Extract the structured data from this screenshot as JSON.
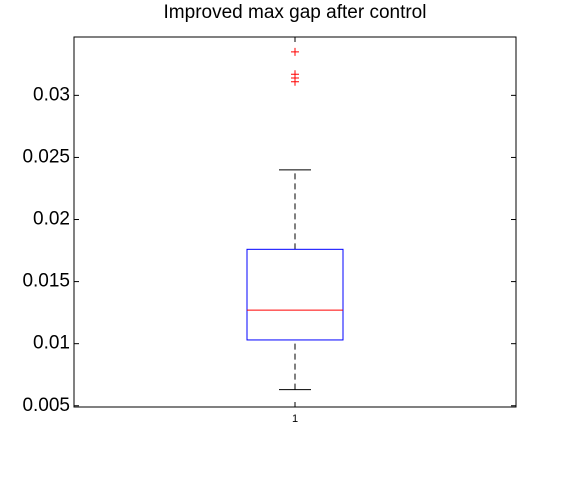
{
  "chart_data": {
    "type": "box",
    "title": "Improved max gap after control",
    "categories": [
      "1"
    ],
    "boxes": [
      {
        "whisker_low": 0.0063,
        "q1": 0.0103,
        "median": 0.0127,
        "q3": 0.0176,
        "whisker_high": 0.024,
        "outliers": [
          0.0335,
          0.0317,
          0.0314,
          0.0311
        ]
      }
    ],
    "box_color": "#0000ff",
    "median_color": "#ff0000",
    "outlier_color": "#ff0000",
    "whisker_color": "#000000",
    "ylim": [
      0.0049,
      0.0347
    ],
    "yticks": [
      0.005,
      0.01,
      0.015,
      0.02,
      0.025,
      0.03
    ]
  }
}
